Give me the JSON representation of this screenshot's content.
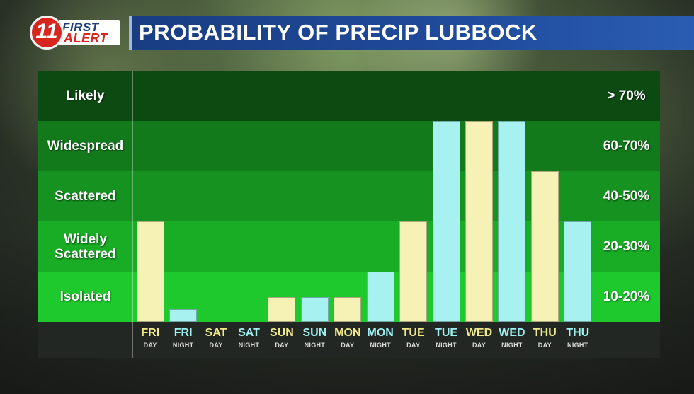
{
  "brand": {
    "logo_number": "11",
    "logo_first": "FIRST",
    "logo_alert": "ALERT"
  },
  "title": "PROBABILITY OF PRECIP LUBBOCK",
  "colors": {
    "day_bar": "#f6f1b5",
    "night_bar": "#a7f1f0",
    "title_bar": "#1f4a99",
    "logo_red": "#d7261e"
  },
  "chart_data": {
    "type": "bar",
    "title": "PROBABILITY OF PRECIP LUBBOCK",
    "categories": [
      {
        "day": "FRI",
        "period": "DAY"
      },
      {
        "day": "FRI",
        "period": "NIGHT"
      },
      {
        "day": "SAT",
        "period": "DAY"
      },
      {
        "day": "SAT",
        "period": "NIGHT"
      },
      {
        "day": "SUN",
        "period": "DAY"
      },
      {
        "day": "SUN",
        "period": "NIGHT"
      },
      {
        "day": "MON",
        "period": "DAY"
      },
      {
        "day": "MON",
        "period": "NIGHT"
      },
      {
        "day": "TUE",
        "period": "DAY"
      },
      {
        "day": "TUE",
        "period": "NIGHT"
      },
      {
        "day": "WED",
        "period": "DAY"
      },
      {
        "day": "WED",
        "period": "NIGHT"
      },
      {
        "day": "THU",
        "period": "DAY"
      },
      {
        "day": "THU",
        "period": "NIGHT"
      }
    ],
    "values": [
      2,
      0.25,
      0,
      0,
      0.5,
      0.5,
      0.5,
      1,
      2,
      4,
      4,
      4,
      3,
      2
    ],
    "ylim": [
      0,
      5
    ],
    "bands": [
      {
        "label": "Likely",
        "range": "> 70%"
      },
      {
        "label": "Widespread",
        "range": "60-70%"
      },
      {
        "label": "Scattered",
        "range": "40-50%"
      },
      {
        "label": "Widely Scattered",
        "range": "20-30%"
      },
      {
        "label": "Isolated",
        "range": "10-20%"
      }
    ],
    "band_colors": [
      "#0d4a12",
      "#137a1c",
      "#169221",
      "#19ad26",
      "#1ec92d"
    ],
    "grid": true,
    "legend": "none"
  }
}
